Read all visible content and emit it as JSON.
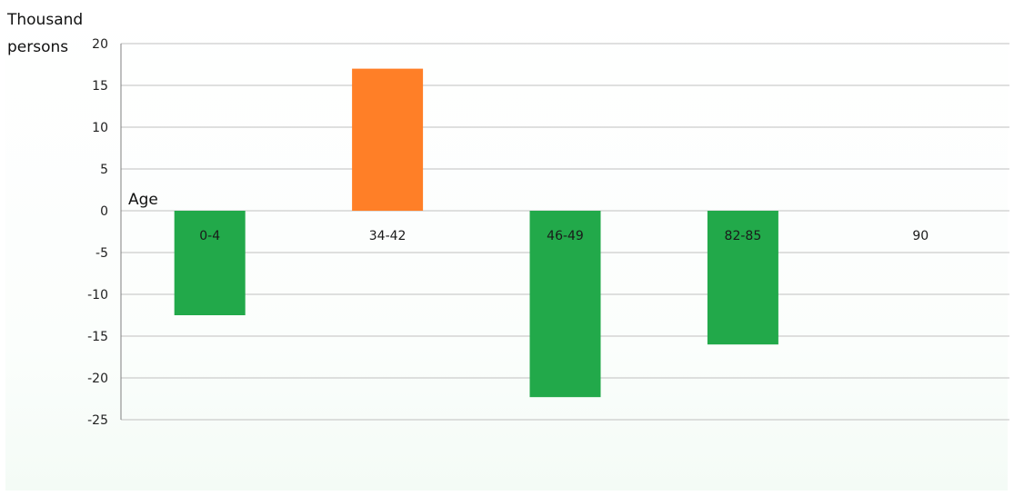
{
  "chart_data": {
    "type": "bar",
    "ylabel_lines": [
      "Thousand",
      "persons"
    ],
    "xlabel": "Age",
    "categories": [
      "0-4",
      "34-42",
      "46-49",
      "82-85",
      "90"
    ],
    "values": [
      -12.5,
      17,
      -22.3,
      -16,
      0
    ],
    "bar_colors": [
      "#22a94a",
      "#ff7f27",
      "#22a94a",
      "#22a94a",
      "#22a94a"
    ],
    "ylim": [
      -25,
      20
    ],
    "yticks": [
      20,
      15,
      10,
      5,
      0,
      -5,
      -10,
      -15,
      -20,
      -25
    ],
    "grid": true
  },
  "colors": {
    "positive": "#ff7f27",
    "negative": "#22a94a",
    "grid": "#c0c0c0",
    "axis": "#7f7f7f"
  }
}
